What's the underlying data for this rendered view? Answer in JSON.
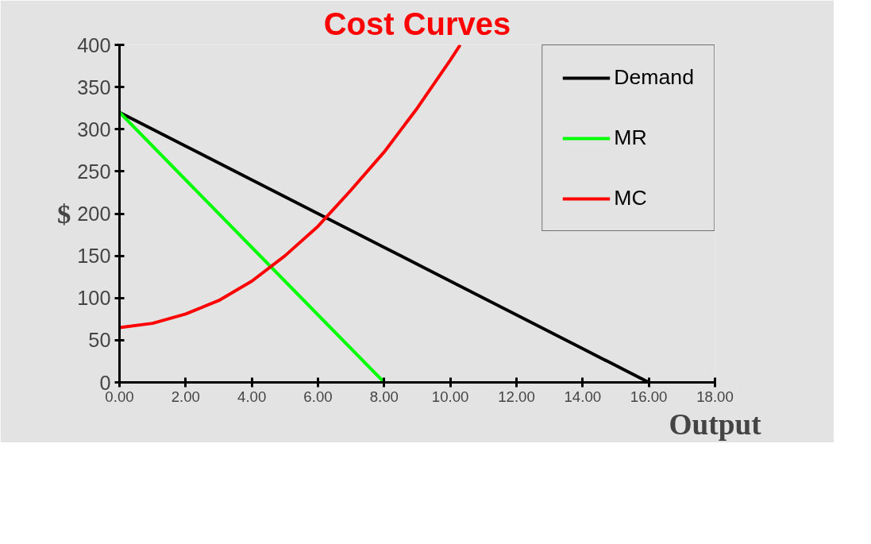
{
  "chart_data": {
    "type": "line",
    "title": "Cost Curves",
    "xlabel": "Output",
    "ylabel": "$",
    "xlim": [
      0,
      18
    ],
    "ylim": [
      0,
      400
    ],
    "xticks": [
      {
        "value": 0,
        "label": "0.00"
      },
      {
        "value": 2,
        "label": "2.00"
      },
      {
        "value": 4,
        "label": "4.00"
      },
      {
        "value": 6,
        "label": "6.00"
      },
      {
        "value": 8,
        "label": "8.00"
      },
      {
        "value": 10,
        "label": "10.00"
      },
      {
        "value": 12,
        "label": "12.00"
      },
      {
        "value": 14,
        "label": "14.00"
      },
      {
        "value": 16,
        "label": "16.00"
      },
      {
        "value": 18,
        "label": "18.00"
      }
    ],
    "yticks": [
      0,
      50,
      100,
      150,
      200,
      250,
      300,
      350,
      400
    ],
    "legend": "top right",
    "marker": "none",
    "line_style": "solid",
    "series": [
      {
        "name": "Demand",
        "color": "#000000",
        "x": [
          0,
          2,
          4,
          6,
          8,
          10,
          12,
          14,
          16
        ],
        "values": [
          320,
          280,
          240,
          200,
          160,
          120,
          80,
          40,
          0
        ]
      },
      {
        "name": "MR",
        "color": "#00ff00",
        "x": [
          0,
          2,
          4,
          6,
          8
        ],
        "values": [
          320,
          240,
          160,
          80,
          0
        ]
      },
      {
        "name": "MC",
        "color": "#ff0000",
        "x": [
          0,
          1,
          2,
          3,
          4,
          5,
          6,
          7,
          8,
          9,
          10,
          10.3
        ],
        "values": [
          65,
          70,
          81,
          97,
          120,
          150,
          185,
          228,
          273,
          325,
          382,
          400
        ]
      }
    ]
  }
}
